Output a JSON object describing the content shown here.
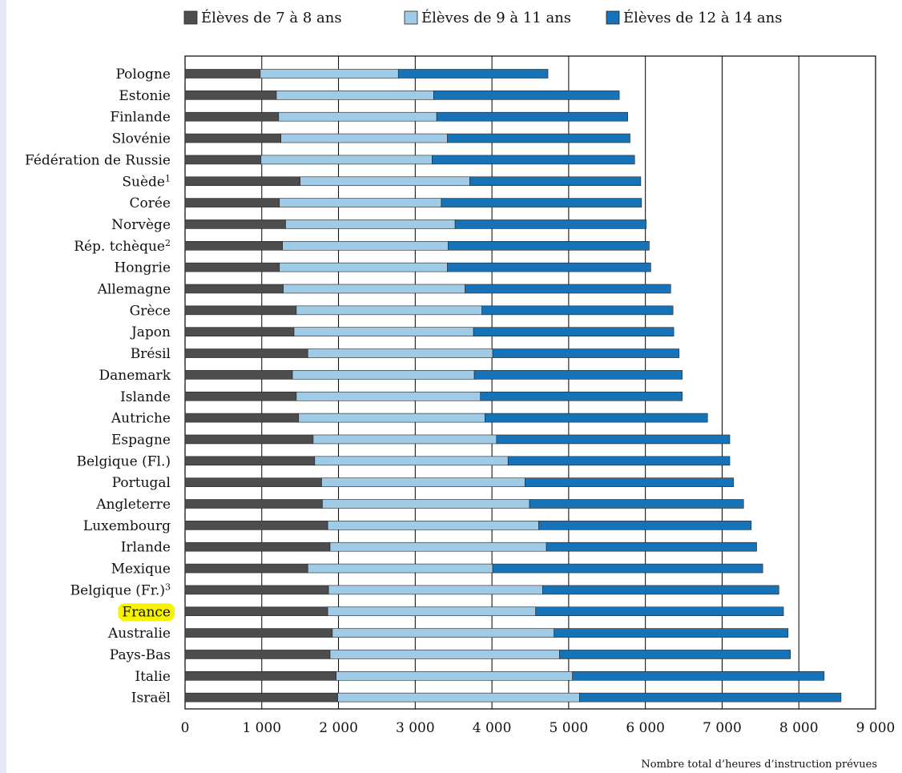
{
  "chart_data": {
    "type": "bar",
    "orientation": "horizontal",
    "stacked": true,
    "title": "",
    "xlabel": "Nombre total d’heures d’instruction prévues",
    "ylabel": "",
    "xlim": [
      0,
      9000
    ],
    "xticks": [
      0,
      1000,
      2000,
      3000,
      4000,
      5000,
      6000,
      7000,
      8000,
      9000
    ],
    "xtick_labels": [
      "0",
      "1 000",
      "2 000",
      "3 000",
      "4 000",
      "5 000",
      "6 000",
      "7 000",
      "8 000",
      "9 000"
    ],
    "grid": "vertical",
    "legend_position": "top",
    "highlight": "France",
    "highlight_color": "#f7f200",
    "categories": [
      {
        "label": "Pologne",
        "sup": ""
      },
      {
        "label": "Estonie",
        "sup": ""
      },
      {
        "label": "Finlande",
        "sup": ""
      },
      {
        "label": "Slovénie",
        "sup": ""
      },
      {
        "label": "Fédération de Russie",
        "sup": ""
      },
      {
        "label": "Suède",
        "sup": "1"
      },
      {
        "label": "Corée",
        "sup": ""
      },
      {
        "label": "Norvège",
        "sup": ""
      },
      {
        "label": "Rép. tchèque",
        "sup": "2"
      },
      {
        "label": "Hongrie",
        "sup": ""
      },
      {
        "label": "Allemagne",
        "sup": ""
      },
      {
        "label": "Grèce",
        "sup": ""
      },
      {
        "label": "Japon",
        "sup": ""
      },
      {
        "label": "Brésil",
        "sup": ""
      },
      {
        "label": "Danemark",
        "sup": ""
      },
      {
        "label": "Islande",
        "sup": ""
      },
      {
        "label": "Autriche",
        "sup": ""
      },
      {
        "label": "Espagne",
        "sup": ""
      },
      {
        "label": "Belgique (Fl.)",
        "sup": ""
      },
      {
        "label": "Portugal",
        "sup": ""
      },
      {
        "label": "Angleterre",
        "sup": ""
      },
      {
        "label": "Luxembourg",
        "sup": ""
      },
      {
        "label": "Irlande",
        "sup": ""
      },
      {
        "label": "Mexique",
        "sup": ""
      },
      {
        "label": "Belgique (Fr.)",
        "sup": "3"
      },
      {
        "label": "France",
        "sup": ""
      },
      {
        "label": "Australie",
        "sup": ""
      },
      {
        "label": "Pays-Bas",
        "sup": ""
      },
      {
        "label": "Italie",
        "sup": ""
      },
      {
        "label": "Israël",
        "sup": ""
      }
    ],
    "series": [
      {
        "name": "Élèves de 7 à 8 ans",
        "color": "#4d4d4f",
        "values": [
          980,
          1190,
          1220,
          1250,
          990,
          1500,
          1230,
          1310,
          1270,
          1230,
          1280,
          1450,
          1420,
          1600,
          1400,
          1450,
          1480,
          1670,
          1690,
          1780,
          1790,
          1860,
          1890,
          1600,
          1870,
          1860,
          1920,
          1890,
          1970,
          1990
        ]
      },
      {
        "name": "Élèves de 9 à 11 ans",
        "color": "#9fcbe6",
        "values": [
          1800,
          2050,
          2060,
          2170,
          2230,
          2210,
          2110,
          2210,
          2160,
          2190,
          2370,
          2420,
          2340,
          2410,
          2370,
          2400,
          2430,
          2390,
          2520,
          2650,
          2700,
          2750,
          2820,
          2410,
          2790,
          2710,
          2890,
          2990,
          3080,
          3150
        ]
      },
      {
        "name": "Élèves de 12 à 14 ans",
        "color": "#1773b8",
        "values": [
          1950,
          2420,
          2490,
          2380,
          2640,
          2230,
          2610,
          2490,
          2620,
          2650,
          2680,
          2490,
          2610,
          2430,
          2710,
          2630,
          2900,
          3040,
          2890,
          2720,
          2790,
          2770,
          2740,
          3520,
          3080,
          3230,
          3050,
          3010,
          3280,
          3410
        ]
      }
    ]
  }
}
